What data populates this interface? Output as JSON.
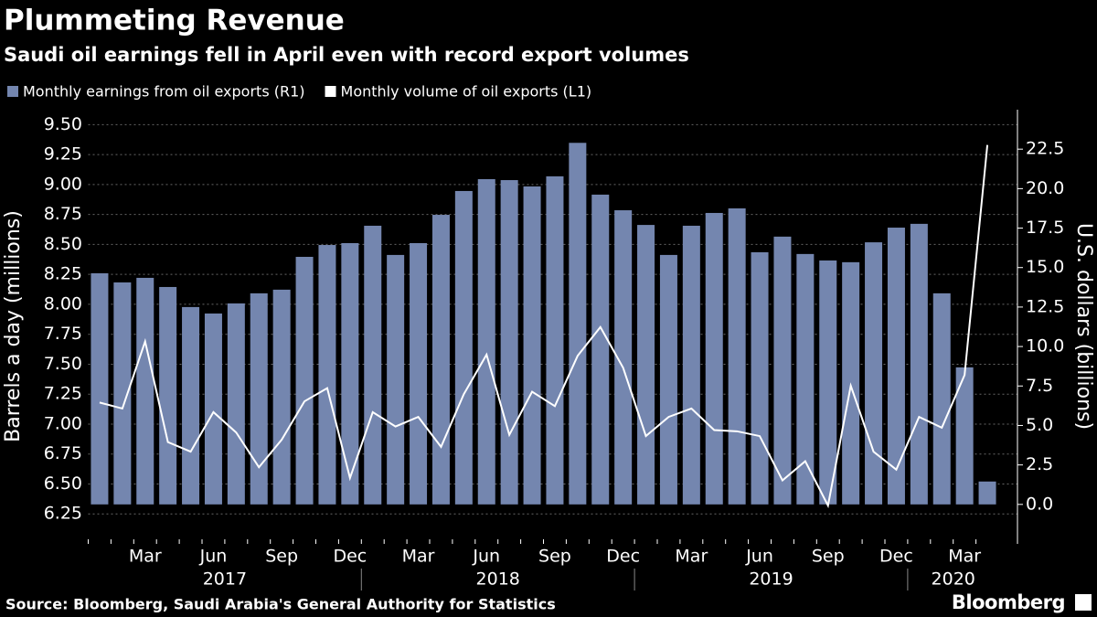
{
  "chart_data": {
    "type": "bar-line",
    "title": "Plummeting Revenue",
    "subtitle": "Saudi oil earnings fell in April even with record export volumes",
    "y_label": "Barrels a day (millions)",
    "y2_label": "U.S. dollars (billions)",
    "source": "Source: Bloomberg, Saudi Arabia's General Authority for Statistics",
    "brand": "Bloomberg",
    "categories": [
      null,
      null,
      "Mar",
      null,
      null,
      "Jun",
      null,
      null,
      "Sep",
      null,
      null,
      "Dec",
      null,
      null,
      "Mar",
      null,
      null,
      "Jun",
      null,
      null,
      "Sep",
      null,
      null,
      "Dec",
      null,
      null,
      "Mar",
      null,
      null,
      "Jun",
      null,
      null,
      "Sep",
      null,
      null,
      "Dec",
      null,
      null,
      "Mar",
      null
    ],
    "years": [
      "2017",
      "2018",
      "2019",
      "2020"
    ],
    "series": [
      {
        "name": "Monthly earnings from oil exports (R1)",
        "color": "#7486af",
        "axis": "y2",
        "kind": "bar",
        "values": [
          14.64,
          14.06,
          14.35,
          13.77,
          12.5,
          12.09,
          12.73,
          13.37,
          13.6,
          15.68,
          16.43,
          16.55,
          17.65,
          15.8,
          16.55,
          18.34,
          19.85,
          20.6,
          20.54,
          20.14,
          20.78,
          22.9,
          19.62,
          18.63,
          17.7,
          15.8,
          17.65,
          18.46,
          18.75,
          15.97,
          16.96,
          15.86,
          15.45,
          15.34,
          16.6,
          17.53,
          17.77,
          13.37,
          8.68,
          1.45
        ]
      },
      {
        "name": "Monthly volume of oil exports (L1)",
        "color": "#ffffff",
        "axis": "y",
        "kind": "line",
        "values": [
          7.18,
          7.13,
          7.69,
          6.85,
          6.77,
          7.1,
          6.93,
          6.64,
          6.87,
          7.19,
          7.3,
          6.55,
          7.1,
          6.98,
          7.06,
          6.81,
          7.25,
          7.58,
          6.91,
          7.27,
          7.15,
          7.57,
          7.81,
          7.47,
          6.9,
          7.06,
          7.13,
          6.95,
          6.94,
          6.9,
          6.53,
          6.69,
          6.32,
          7.32,
          6.77,
          6.62,
          7.06,
          6.97,
          7.41,
          9.33
        ]
      }
    ],
    "ylim": [
      6.0,
      9.625
    ],
    "yticks": [
      6.25,
      {
        "value": 6.5,
        "label": "6.50"
      },
      6.75,
      {
        "value": 7.0,
        "label": "7.00"
      },
      7.25,
      {
        "value": 7.5,
        "label": "7.50"
      },
      7.75,
      {
        "value": 8.0,
        "label": "8.00"
      },
      8.25,
      {
        "value": 8.5,
        "label": "8.50"
      },
      8.75,
      {
        "value": 9.0,
        "label": "9.00"
      },
      9.25,
      {
        "value": 9.5,
        "label": "9.50"
      }
    ],
    "y2lim": [
      -2.5,
      25
    ],
    "y2ticks": [
      {
        "value": 0,
        "label": "0.0"
      },
      2.5,
      {
        "value": 5,
        "label": "5.0"
      },
      7.5,
      {
        "value": 10,
        "label": "10.0"
      },
      12.5,
      {
        "value": 15,
        "label": "15.0"
      },
      17.5,
      {
        "value": 20,
        "label": "20.0"
      },
      22.5
    ],
    "grid": true
  }
}
